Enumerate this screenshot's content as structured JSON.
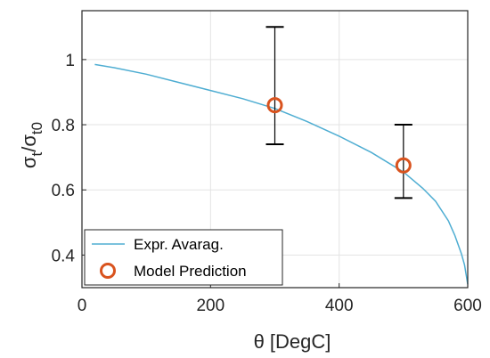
{
  "chart_data": {
    "type": "line",
    "xlabel": "θ [DegC]",
    "ylabel": {
      "base": "σ",
      "num_sub": "t",
      "sep": "/",
      "den_sub": "t0"
    },
    "xlim": [
      0,
      600
    ],
    "ylim": [
      0.3,
      1.15
    ],
    "xticks": [
      0,
      200,
      400,
      600
    ],
    "xtick_labels": [
      "0",
      "200",
      "400",
      "600"
    ],
    "yticks": [
      0.4,
      0.6,
      0.8,
      1.0
    ],
    "ytick_labels": [
      "0.4",
      "0.6",
      "0.8",
      "1"
    ],
    "grid": true,
    "legend_position": "bottom-left",
    "series": [
      {
        "name": "Expr. Avarag.",
        "style": "line",
        "color": "#4eadd2",
        "x": [
          20,
          50,
          100,
          150,
          200,
          250,
          300,
          350,
          400,
          450,
          500,
          530,
          550,
          570,
          580,
          590,
          595,
          600
        ],
        "y": [
          0.985,
          0.975,
          0.955,
          0.93,
          0.905,
          0.88,
          0.85,
          0.81,
          0.765,
          0.715,
          0.655,
          0.605,
          0.565,
          0.505,
          0.46,
          0.405,
          0.37,
          0.31
        ]
      },
      {
        "name": "Model Prediction",
        "style": "marker",
        "color": "#d9531e",
        "x": [
          300,
          500
        ],
        "y": [
          0.86,
          0.675
        ],
        "err_low": [
          0.74,
          0.575
        ],
        "err_high": [
          1.1,
          0.8
        ]
      }
    ]
  }
}
